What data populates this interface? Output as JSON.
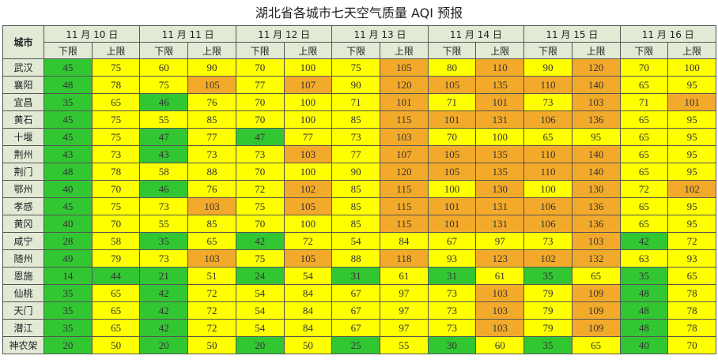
{
  "title": "湖北省各城市七天空气质量 AQI 预报",
  "header": {
    "city_label": "城市",
    "dates": [
      "11 月 10 日",
      "11 月 11 日",
      "11 月 12 日",
      "11 月 13 日",
      "11 月 14 日",
      "11 月 15 日",
      "11 月 16 日"
    ],
    "sub_headers": [
      "下限",
      "上限"
    ]
  },
  "table": {
    "rows": [
      [
        "武汉",
        45,
        75,
        60,
        90,
        70,
        100,
        75,
        105,
        80,
        110,
        90,
        120,
        70,
        100
      ],
      [
        "襄阳",
        48,
        78,
        75,
        105,
        77,
        107,
        90,
        120,
        105,
        135,
        110,
        140,
        65,
        95
      ],
      [
        "宜昌",
        35,
        65,
        46,
        76,
        70,
        100,
        71,
        101,
        71,
        101,
        73,
        103,
        71,
        101
      ],
      [
        "黄石",
        45,
        75,
        55,
        85,
        70,
        100,
        85,
        115,
        101,
        131,
        106,
        136,
        65,
        95
      ],
      [
        "十堰",
        45,
        75,
        47,
        77,
        47,
        77,
        73,
        103,
        70,
        100,
        65,
        95,
        65,
        95
      ],
      [
        "荆州",
        43,
        73,
        43,
        73,
        73,
        103,
        77,
        107,
        105,
        135,
        110,
        140,
        65,
        95
      ],
      [
        "荆门",
        48,
        78,
        58,
        88,
        70,
        100,
        90,
        120,
        105,
        135,
        110,
        140,
        65,
        95
      ],
      [
        "鄂州",
        40,
        70,
        46,
        76,
        72,
        102,
        85,
        115,
        100,
        130,
        100,
        130,
        72,
        102
      ],
      [
        "孝感",
        45,
        75,
        73,
        103,
        75,
        105,
        85,
        115,
        101,
        131,
        106,
        136,
        65,
        95
      ],
      [
        "黄冈",
        40,
        70,
        55,
        85,
        70,
        100,
        85,
        115,
        101,
        131,
        106,
        136,
        65,
        95
      ],
      [
        "咸宁",
        28,
        58,
        35,
        65,
        42,
        72,
        54,
        84,
        67,
        97,
        73,
        103,
        42,
        72
      ],
      [
        "随州",
        49,
        79,
        73,
        103,
        75,
        105,
        88,
        118,
        93,
        123,
        102,
        132,
        63,
        93
      ],
      [
        "恩施",
        14,
        44,
        21,
        51,
        24,
        54,
        31,
        61,
        31,
        61,
        35,
        65,
        35,
        65
      ],
      [
        "仙桃",
        35,
        65,
        42,
        72,
        54,
        84,
        67,
        97,
        73,
        103,
        79,
        109,
        48,
        78
      ],
      [
        "天门",
        35,
        65,
        42,
        72,
        54,
        84,
        67,
        97,
        73,
        103,
        79,
        109,
        48,
        78
      ],
      [
        "潜江",
        35,
        65,
        42,
        72,
        54,
        84,
        67,
        97,
        73,
        103,
        79,
        109,
        48,
        78
      ],
      [
        "神农架",
        20,
        50,
        20,
        50,
        20,
        50,
        25,
        55,
        30,
        60,
        35,
        65,
        40,
        70
      ]
    ]
  }
}
